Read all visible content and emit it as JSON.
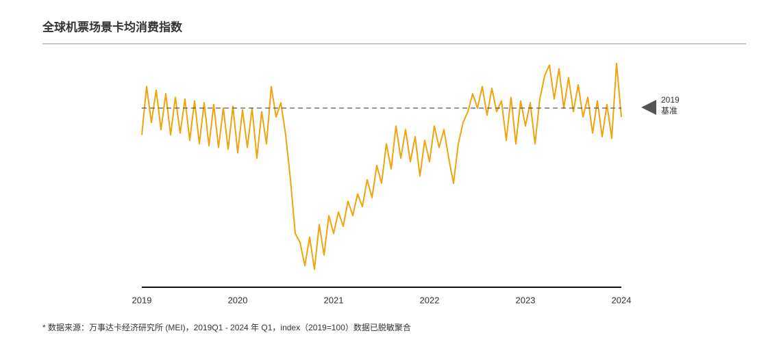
{
  "chart_data": {
    "type": "line",
    "title": "全球机票场景卡均消费指数",
    "footnote": "* 数据来源：万事达卡经济研究所 (MEI)，2019Q1 - 2024 年 Q1，index（2019=100）数据已脱敏聚合",
    "x": [
      2019.0,
      2019.05,
      2019.1,
      2019.15,
      2019.2,
      2019.25,
      2019.3,
      2019.35,
      2019.4,
      2019.45,
      2019.5,
      2019.55,
      2019.6,
      2019.65,
      2019.7,
      2019.75,
      2019.8,
      2019.85,
      2019.9,
      2019.95,
      2020.0,
      2020.05,
      2020.1,
      2020.15,
      2020.2,
      2020.25,
      2020.3,
      2020.35,
      2020.4,
      2020.45,
      2020.5,
      2020.55,
      2020.6,
      2020.65,
      2020.7,
      2020.75,
      2020.8,
      2020.85,
      2020.9,
      2020.95,
      2021.0,
      2021.05,
      2021.1,
      2021.15,
      2021.2,
      2021.25,
      2021.3,
      2021.35,
      2021.4,
      2021.45,
      2021.5,
      2021.55,
      2021.6,
      2021.65,
      2021.7,
      2021.75,
      2021.8,
      2021.85,
      2021.9,
      2021.95,
      2022.0,
      2022.05,
      2022.1,
      2022.15,
      2022.2,
      2022.25,
      2022.3,
      2022.35,
      2022.4,
      2022.45,
      2022.5,
      2022.55,
      2022.6,
      2022.65,
      2022.7,
      2022.75,
      2022.8,
      2022.85,
      2022.9,
      2022.95,
      2023.0,
      2023.05,
      2023.1,
      2023.15,
      2023.2,
      2023.25,
      2023.3,
      2023.35,
      2023.4,
      2023.45,
      2023.5,
      2023.55,
      2023.6,
      2023.65,
      2023.7,
      2023.75,
      2023.8,
      2023.85,
      2023.9,
      2023.95,
      2024.0
    ],
    "series": [
      {
        "color": "#f0a30a",
        "values": [
          85,
          112,
          92,
          110,
          88,
          108,
          85,
          106,
          86,
          105,
          82,
          104,
          80,
          103,
          79,
          102,
          78,
          100,
          77,
          101,
          75,
          99,
          78,
          100,
          72,
          98,
          80,
          112,
          95,
          103,
          85,
          60,
          30,
          25,
          12,
          28,
          10,
          35,
          18,
          40,
          30,
          42,
          34,
          48,
          40,
          52,
          45,
          60,
          50,
          68,
          58,
          80,
          66,
          90,
          72,
          88,
          70,
          84,
          62,
          82,
          70,
          90,
          78,
          88,
          72,
          58,
          80,
          92,
          98,
          108,
          100,
          112,
          96,
          111,
          98,
          104,
          82,
          106,
          80,
          104,
          90,
          103,
          80,
          105,
          118,
          124,
          105,
          122,
          100,
          117,
          98,
          113,
          95,
          106,
          86,
          104,
          84,
          102,
          83,
          125,
          95
        ]
      }
    ],
    "xlim": [
      2019,
      2024
    ],
    "xticks": [
      2019,
      2020,
      2021,
      2022,
      2023,
      2024
    ],
    "ylim": [
      0,
      130
    ],
    "reference_line": {
      "value": 100,
      "label": [
        "2019",
        "基准"
      ]
    }
  }
}
